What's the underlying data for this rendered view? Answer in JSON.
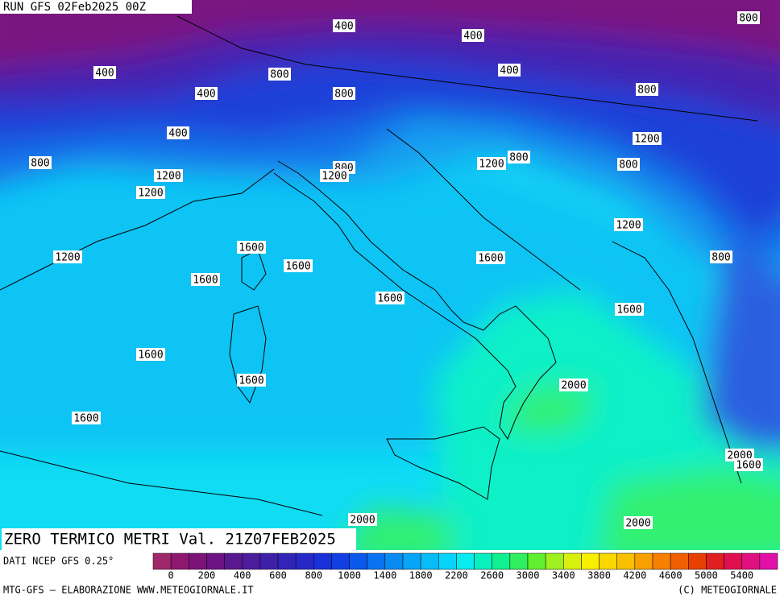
{
  "header": {
    "title": "RUN GFS 02Feb2025 00Z"
  },
  "contour_labels": [
    400,
    400,
    800,
    400,
    800,
    400,
    400,
    800,
    800,
    400,
    1200,
    800,
    800,
    1200,
    800,
    800,
    1200,
    1200,
    1200,
    1200,
    1600,
    1200,
    1600,
    800,
    1600,
    1600,
    1600,
    1600,
    1600,
    1600,
    2000,
    1600,
    2000,
    1600,
    2000,
    2000
  ],
  "map_title": "ZERO TERMICO METRI Val. 21Z07FEB2025",
  "source": "DATI NCEP GFS 0.25°",
  "legend": {
    "labels": [
      0,
      200,
      400,
      600,
      800,
      1000,
      1400,
      1800,
      2200,
      2600,
      3000,
      3400,
      3800,
      4200,
      4600,
      5000,
      5400
    ],
    "colors": [
      "#a0286a",
      "#8e1870",
      "#7c1478",
      "#6c1484",
      "#5a1890",
      "#4c1c9c",
      "#3e20a8",
      "#3224b8",
      "#2628c8",
      "#1a30d8",
      "#1040e4",
      "#0a58ec",
      "#0872f0",
      "#088cf4",
      "#08a4f6",
      "#08bcf8",
      "#08d4fa",
      "#08ecf0",
      "#08f0c0",
      "#10f090",
      "#30f060",
      "#60f030",
      "#a0f020",
      "#d8f010",
      "#f8f000",
      "#f8d800",
      "#f8c000",
      "#f8a000",
      "#f88000",
      "#f06000",
      "#e84000",
      "#e02020",
      "#e01050",
      "#e01080",
      "#e010a8"
    ]
  },
  "footer": {
    "left": "MTG-GFS — ELABORAZIONE WWW.METEOGIORNALE.IT",
    "right": "(C) METEOGIORNALE"
  }
}
